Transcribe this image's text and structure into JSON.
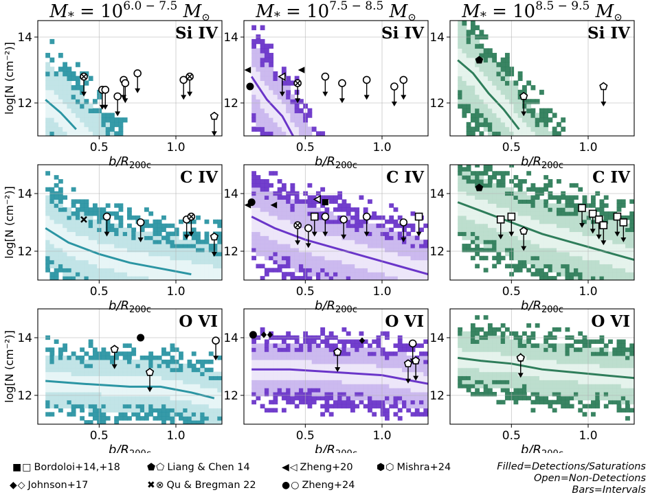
{
  "figure": {
    "columns": [
      {
        "mass_label_base": "M",
        "mass_label_sub": "*",
        "mass_range": "6.0 − 7.5",
        "unit": "M",
        "color": "#2b95a3",
        "light": "#bfe3e6",
        "pale": "#e6f4f5"
      },
      {
        "mass_label_base": "M",
        "mass_label_sub": "*",
        "mass_range": "7.5 − 8.5",
        "unit": "M",
        "color": "#6a35c9",
        "light": "#c9b6ee",
        "pale": "#ece5f9"
      },
      {
        "mass_label_base": "M",
        "mass_label_sub": "*",
        "mass_range": "8.5 − 9.5",
        "unit": "M",
        "color": "#2e7d5a",
        "light": "#b9dccb",
        "pale": "#e4f2eb"
      }
    ],
    "rows": [
      {
        "ion": "Si IV",
        "ylim": [
          11.0,
          14.5
        ],
        "yticks": [
          12,
          14
        ]
      },
      {
        "ion": "C IV",
        "ylim": [
          11.0,
          15.0
        ],
        "yticks": [
          12,
          14
        ]
      },
      {
        "ion": "O VI",
        "ylim": [
          11.0,
          15.0
        ],
        "yticks": [
          12,
          14
        ]
      }
    ],
    "xlabel_base": "b/R",
    "xlabel_sub": "200c",
    "ylabel": "log[N (cm⁻²)]",
    "xlim": [
      0.1,
      1.3
    ],
    "xticks": [
      "0.5",
      "1.0"
    ]
  },
  "chart_data": [
    {
      "type": "scatter",
      "title": "Si IV, M* 10^6.0-7.5",
      "median": [
        [
          0.15,
          12.1
        ],
        [
          0.25,
          11.7
        ],
        [
          0.35,
          11.2
        ]
      ],
      "points": [
        {
          "x": 0.4,
          "y": 12.8,
          "m": "xo",
          "lim": true
        },
        {
          "x": 0.52,
          "y": 12.4,
          "m": "o",
          "lim": true
        },
        {
          "x": 0.54,
          "y": 12.4,
          "m": "o",
          "lim": true
        },
        {
          "x": 0.62,
          "y": 12.2,
          "m": "o",
          "lim": true
        },
        {
          "x": 0.66,
          "y": 12.7,
          "m": "o",
          "lim": true
        },
        {
          "x": 0.67,
          "y": 12.6,
          "m": "o",
          "lim": true
        },
        {
          "x": 0.75,
          "y": 12.9,
          "m": "o",
          "lim": true
        },
        {
          "x": 1.05,
          "y": 12.7,
          "m": "o",
          "lim": true
        },
        {
          "x": 1.09,
          "y": 12.8,
          "m": "xo",
          "lim": true
        },
        {
          "x": 1.25,
          "y": 11.6,
          "m": "p",
          "lim": true
        }
      ]
    },
    {
      "type": "scatter",
      "title": "Si IV, M* 10^7.5-8.5",
      "median": [
        [
          0.15,
          12.8
        ],
        [
          0.25,
          12.1
        ],
        [
          0.35,
          11.6
        ],
        [
          0.42,
          11.0
        ]
      ],
      "points": [
        {
          "x": 0.13,
          "y": 13.0,
          "m": "tri",
          "lim": false
        },
        {
          "x": 0.14,
          "y": 12.5,
          "m": "cf",
          "lim": false
        },
        {
          "x": 0.35,
          "y": 12.8,
          "m": "tri-o",
          "lim": true
        },
        {
          "x": 0.45,
          "y": 12.6,
          "m": "xo",
          "lim": true
        },
        {
          "x": 0.48,
          "y": 13.0,
          "m": "tri",
          "lim": false
        },
        {
          "x": 0.63,
          "y": 12.8,
          "m": "o",
          "lim": true
        },
        {
          "x": 0.74,
          "y": 12.6,
          "m": "o",
          "lim": true
        },
        {
          "x": 0.9,
          "y": 12.7,
          "m": "o",
          "lim": true
        },
        {
          "x": 1.08,
          "y": 12.5,
          "m": "o",
          "lim": true
        },
        {
          "x": 1.14,
          "y": 12.7,
          "m": "o",
          "lim": true
        }
      ]
    },
    {
      "type": "scatter",
      "title": "Si IV, M* 10^8.5-9.5",
      "median": [
        [
          0.15,
          13.3
        ],
        [
          0.25,
          12.9
        ],
        [
          0.35,
          12.3
        ],
        [
          0.45,
          11.8
        ],
        [
          0.55,
          11.2
        ]
      ],
      "points": [
        {
          "x": 0.29,
          "y": 13.3,
          "m": "pf",
          "lim": false
        },
        {
          "x": 0.58,
          "y": 12.2,
          "m": "p",
          "lim": true
        },
        {
          "x": 1.1,
          "y": 12.5,
          "m": "p",
          "lim": true
        }
      ]
    },
    {
      "type": "scatter",
      "title": "C IV, M* 10^6.0-7.5",
      "median": [
        [
          0.15,
          12.8
        ],
        [
          0.3,
          12.3
        ],
        [
          0.5,
          11.9
        ],
        [
          0.7,
          11.6
        ],
        [
          0.9,
          11.4
        ],
        [
          1.1,
          11.2
        ]
      ],
      "points": [
        {
          "x": 0.4,
          "y": 13.1,
          "m": "x",
          "lim": false
        },
        {
          "x": 0.55,
          "y": 13.2,
          "m": "o",
          "lim": true
        },
        {
          "x": 0.77,
          "y": 13.0,
          "m": "o",
          "lim": true
        },
        {
          "x": 1.07,
          "y": 13.1,
          "m": "o",
          "lim": true
        },
        {
          "x": 1.1,
          "y": 13.2,
          "m": "xo",
          "lim": true
        },
        {
          "x": 1.25,
          "y": 12.5,
          "m": "p",
          "lim": true
        }
      ]
    },
    {
      "type": "scatter",
      "title": "C IV, M* 10^7.5-8.5",
      "median": [
        [
          0.15,
          13.2
        ],
        [
          0.3,
          12.8
        ],
        [
          0.5,
          12.4
        ],
        [
          0.7,
          12.1
        ],
        [
          0.9,
          11.8
        ],
        [
          1.1,
          11.5
        ],
        [
          1.3,
          11.2
        ]
      ],
      "points": [
        {
          "x": 0.13,
          "y": 13.6,
          "m": "tri",
          "lim": false
        },
        {
          "x": 0.15,
          "y": 13.7,
          "m": "cf",
          "lim": false
        },
        {
          "x": 0.3,
          "y": 13.6,
          "m": "tri",
          "lim": false
        },
        {
          "x": 0.45,
          "y": 12.9,
          "m": "xo",
          "lim": true
        },
        {
          "x": 0.52,
          "y": 12.8,
          "m": "o",
          "lim": true
        },
        {
          "x": 0.56,
          "y": 13.2,
          "m": "s",
          "lim": true
        },
        {
          "x": 0.58,
          "y": 13.8,
          "m": "tri-o",
          "lim": false
        },
        {
          "x": 0.63,
          "y": 13.7,
          "m": "sf",
          "lim": false
        },
        {
          "x": 0.63,
          "y": 13.2,
          "m": "o",
          "lim": true
        },
        {
          "x": 0.75,
          "y": 13.1,
          "m": "o",
          "lim": true
        },
        {
          "x": 0.9,
          "y": 13.2,
          "m": "o",
          "lim": true
        },
        {
          "x": 1.14,
          "y": 13.0,
          "m": "o",
          "lim": true
        },
        {
          "x": 1.24,
          "y": 13.2,
          "m": "s",
          "lim": true
        }
      ]
    },
    {
      "type": "scatter",
      "title": "C IV, M* 10^8.5-9.5",
      "median": [
        [
          0.15,
          13.7
        ],
        [
          0.3,
          13.4
        ],
        [
          0.5,
          13.0
        ],
        [
          0.7,
          12.6
        ],
        [
          0.9,
          12.3
        ],
        [
          1.1,
          12.0
        ],
        [
          1.3,
          11.7
        ]
      ],
      "points": [
        {
          "x": 0.29,
          "y": 14.2,
          "m": "pf",
          "lim": false
        },
        {
          "x": 0.43,
          "y": 13.1,
          "m": "s",
          "lim": true
        },
        {
          "x": 0.5,
          "y": 13.2,
          "m": "s",
          "lim": true
        },
        {
          "x": 0.58,
          "y": 12.7,
          "m": "p",
          "lim": true
        },
        {
          "x": 0.96,
          "y": 13.5,
          "m": "s",
          "lim": true
        },
        {
          "x": 1.03,
          "y": 13.3,
          "m": "s",
          "lim": true
        },
        {
          "x": 1.07,
          "y": 13.1,
          "m": "s",
          "lim": true
        },
        {
          "x": 1.1,
          "y": 12.9,
          "m": "s",
          "lim": true
        },
        {
          "x": 1.19,
          "y": 13.2,
          "m": "s",
          "lim": true
        },
        {
          "x": 1.23,
          "y": 13.0,
          "m": "s",
          "lim": true
        }
      ]
    },
    {
      "type": "scatter",
      "title": "O VI, M* 10^6.0-7.5",
      "median": [
        [
          0.15,
          12.5
        ],
        [
          0.4,
          12.4
        ],
        [
          0.7,
          12.3
        ],
        [
          0.9,
          12.3
        ],
        [
          1.1,
          12.1
        ],
        [
          1.25,
          11.9
        ]
      ],
      "points": [
        {
          "x": 0.6,
          "y": 13.6,
          "m": "po",
          "lim": true
        },
        {
          "x": 0.77,
          "y": 14.0,
          "m": "cf",
          "lim": false
        },
        {
          "x": 0.83,
          "y": 12.8,
          "m": "po",
          "lim": true
        },
        {
          "x": 1.26,
          "y": 13.9,
          "m": "o",
          "lim": true
        }
      ]
    },
    {
      "type": "scatter",
      "title": "O VI, M* 10^7.5-8.5",
      "median": [
        [
          0.15,
          12.9
        ],
        [
          0.4,
          12.9
        ],
        [
          0.7,
          12.8
        ],
        [
          1.0,
          12.7
        ],
        [
          1.3,
          12.4
        ]
      ],
      "points": [
        {
          "x": 0.16,
          "y": 14.1,
          "m": "cf",
          "lim": false
        },
        {
          "x": 0.23,
          "y": 14.1,
          "m": "df",
          "lim": false
        },
        {
          "x": 0.27,
          "y": 14.1,
          "m": "df",
          "lim": false
        },
        {
          "x": 0.71,
          "y": 13.5,
          "m": "po",
          "lim": true
        },
        {
          "x": 0.87,
          "y": 13.9,
          "m": "df",
          "lim": false
        },
        {
          "x": 1.17,
          "y": 13.1,
          "m": "po",
          "lim": true
        },
        {
          "x": 1.2,
          "y": 13.8,
          "m": "o",
          "lim": true
        },
        {
          "x": 1.22,
          "y": 13.2,
          "m": "po",
          "lim": true
        }
      ]
    },
    {
      "type": "scatter",
      "title": "O VI, M* 10^8.5-9.5",
      "median": [
        [
          0.15,
          13.3
        ],
        [
          0.3,
          13.2
        ],
        [
          0.5,
          13.1
        ],
        [
          0.7,
          12.9
        ],
        [
          0.9,
          12.8
        ],
        [
          1.1,
          12.7
        ],
        [
          1.3,
          12.6
        ]
      ],
      "points": [
        {
          "x": 0.56,
          "y": 13.3,
          "m": "do",
          "lim": true
        },
        {
          "x": 0.56,
          "y": 13.3,
          "m": "po",
          "lim": false
        }
      ]
    }
  ],
  "legend": {
    "bordoloi": {
      "symbols": "■□",
      "label": "Bordoloi+14,+18"
    },
    "johnson": {
      "symbols": "◆◇",
      "label": "Johnson+17"
    },
    "liang": {
      "symbols": "⬟⬠",
      "label": "Liang & Chen 14"
    },
    "qu": {
      "symbols": "✖⊗",
      "label": "Qu & Bregman 22"
    },
    "zheng20": {
      "symbols": "◀◁",
      "label": "Zheng+20"
    },
    "zheng24": {
      "symbols": "●○",
      "label": "Zheng+24"
    },
    "mishra": {
      "symbols": "⬢⬡",
      "label": "Mishra+24"
    }
  },
  "note": {
    "line1": "Filled=Detections/Saturations",
    "line2": "Open=Non-Detections",
    "line3": "Bars=Intervals"
  }
}
